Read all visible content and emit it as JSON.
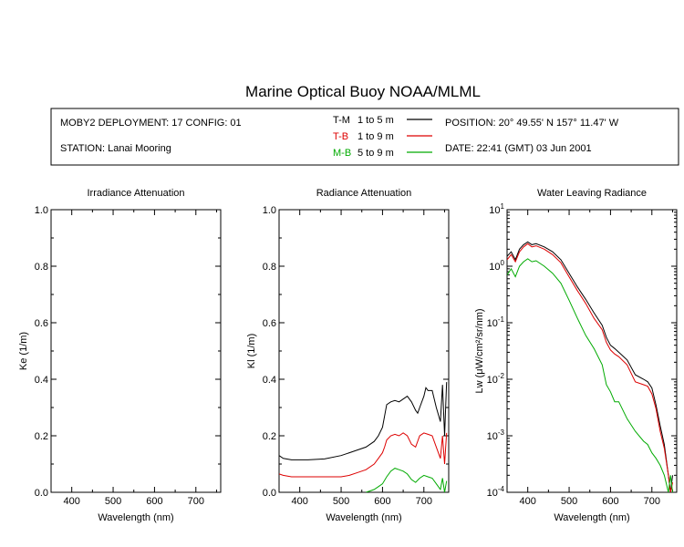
{
  "title": "Marine Optical Buoy NOAA/MLML",
  "info": {
    "deployment": "MOBY2 DEPLOYMENT: 17 CONFIG: 01",
    "station": "STATION: Lanai Mooring",
    "position": "POSITION: 20° 49.55' N   157° 11.47' W",
    "date": "DATE: 22:41 (GMT) 03 Jun 2001"
  },
  "legend": [
    {
      "code": "T-M",
      "range": "1 to 5  m",
      "color": "#000000"
    },
    {
      "code": "T-B",
      "range": "1 to 9  m",
      "color": "#dd0000"
    },
    {
      "code": "M-B",
      "range": "5 to 9  m",
      "color": "#00aa00"
    }
  ],
  "chart_data": [
    {
      "type": "line",
      "title": "Irradiance Attenuation",
      "xlabel": "Wavelength (nm)",
      "ylabel": "Ke  (1/m)",
      "xlim": [
        350,
        760
      ],
      "ylim": [
        0,
        1.0
      ],
      "xticks": [
        "400",
        "500",
        "600",
        "700"
      ],
      "yticks": [
        "0.0",
        "0.2",
        "0.4",
        "0.6",
        "0.8",
        "1.0"
      ],
      "series": []
    },
    {
      "type": "line",
      "title": "Radiance Attenuation",
      "xlabel": "Wavelength (nm)",
      "ylabel": "Kl  (1/m)",
      "xlim": [
        350,
        760
      ],
      "ylim": [
        0,
        1.0
      ],
      "xticks": [
        "400",
        "500",
        "600",
        "700"
      ],
      "yticks": [
        "0.0",
        "0.2",
        "0.4",
        "0.6",
        "0.8",
        "1.0"
      ],
      "series": [
        {
          "name": "T-M",
          "color": "#000000",
          "x": [
            350,
            360,
            380,
            420,
            460,
            500,
            520,
            540,
            560,
            580,
            590,
            600,
            605,
            610,
            620,
            630,
            640,
            650,
            660,
            670,
            680,
            685,
            690,
            700,
            705,
            710,
            720,
            730,
            740,
            745,
            750,
            755
          ],
          "y": [
            0.13,
            0.12,
            0.115,
            0.115,
            0.118,
            0.13,
            0.14,
            0.15,
            0.16,
            0.18,
            0.2,
            0.23,
            0.27,
            0.31,
            0.32,
            0.325,
            0.32,
            0.33,
            0.34,
            0.32,
            0.29,
            0.28,
            0.3,
            0.34,
            0.37,
            0.36,
            0.36,
            0.3,
            0.25,
            0.38,
            0.2,
            0.39
          ]
        },
        {
          "name": "T-B",
          "color": "#dd0000",
          "x": [
            350,
            360,
            380,
            420,
            460,
            500,
            520,
            540,
            560,
            580,
            590,
            600,
            605,
            610,
            620,
            630,
            640,
            650,
            660,
            670,
            680,
            690,
            700,
            710,
            720,
            730,
            740,
            745,
            750,
            755
          ],
          "y": [
            0.065,
            0.06,
            0.055,
            0.055,
            0.055,
            0.055,
            0.06,
            0.07,
            0.08,
            0.1,
            0.12,
            0.14,
            0.16,
            0.185,
            0.2,
            0.205,
            0.2,
            0.21,
            0.2,
            0.17,
            0.16,
            0.2,
            0.21,
            0.205,
            0.2,
            0.16,
            0.12,
            0.2,
            0.1,
            0.21
          ]
        },
        {
          "name": "M-B",
          "color": "#00aa00",
          "x": [
            560,
            570,
            580,
            590,
            600,
            610,
            620,
            630,
            640,
            650,
            660,
            670,
            680,
            690,
            700,
            710,
            720,
            730,
            740,
            745,
            750,
            755
          ],
          "y": [
            0.0,
            0.005,
            0.01,
            0.02,
            0.03,
            0.055,
            0.075,
            0.085,
            0.08,
            0.075,
            0.065,
            0.045,
            0.035,
            0.05,
            0.06,
            0.055,
            0.05,
            0.03,
            0.01,
            0.05,
            0.0,
            0.04
          ]
        }
      ]
    },
    {
      "type": "line",
      "title": "Water Leaving Radiance",
      "xlabel": "Wavelength (nm)",
      "ylabel": "Lw  (μW/cm²/sr/nm)",
      "log_y": true,
      "xlim": [
        350,
        760
      ],
      "ylim": [
        0.0001,
        10
      ],
      "xticks": [
        "400",
        "500",
        "600",
        "700"
      ],
      "series": [
        {
          "name": "T-M",
          "color": "#000000",
          "x": [
            350,
            360,
            370,
            380,
            390,
            400,
            410,
            420,
            440,
            460,
            480,
            500,
            520,
            540,
            560,
            580,
            590,
            600,
            610,
            620,
            640,
            660,
            680,
            690,
            700,
            710,
            720,
            730,
            740,
            745,
            750
          ],
          "y": [
            1.5,
            1.8,
            1.3,
            2.0,
            2.4,
            2.7,
            2.4,
            2.5,
            2.2,
            1.8,
            1.3,
            0.75,
            0.43,
            0.26,
            0.15,
            0.09,
            0.055,
            0.04,
            0.035,
            0.03,
            0.022,
            0.012,
            0.01,
            0.009,
            0.007,
            0.0035,
            0.0015,
            0.0007,
            0.0002,
            0.0001,
            0.0002
          ]
        },
        {
          "name": "T-B",
          "color": "#dd0000",
          "x": [
            350,
            360,
            370,
            380,
            390,
            400,
            410,
            420,
            440,
            460,
            480,
            500,
            520,
            540,
            560,
            580,
            590,
            600,
            610,
            620,
            640,
            660,
            680,
            690,
            700,
            710,
            720,
            730,
            740,
            745,
            750
          ],
          "y": [
            1.3,
            1.6,
            1.2,
            1.8,
            2.2,
            2.5,
            2.2,
            2.3,
            2.0,
            1.6,
            1.15,
            0.65,
            0.37,
            0.22,
            0.12,
            0.075,
            0.045,
            0.033,
            0.028,
            0.025,
            0.018,
            0.009,
            0.008,
            0.0075,
            0.0055,
            0.003,
            0.0012,
            0.0006,
            0.0002,
            0.0001,
            0.00015
          ]
        },
        {
          "name": "M-B",
          "color": "#00aa00",
          "x": [
            350,
            360,
            370,
            380,
            390,
            400,
            410,
            420,
            440,
            460,
            480,
            500,
            520,
            540,
            560,
            580,
            590,
            600,
            610,
            620,
            640,
            660,
            680,
            690,
            700,
            710,
            720,
            730,
            740,
            745,
            750
          ],
          "y": [
            0.7,
            0.9,
            0.65,
            1.0,
            1.2,
            1.35,
            1.2,
            1.25,
            1.0,
            0.75,
            0.5,
            0.25,
            0.12,
            0.06,
            0.035,
            0.018,
            0.008,
            0.006,
            0.004,
            0.004,
            0.002,
            0.0012,
            0.0008,
            0.0007,
            0.0005,
            0.0004,
            0.0003,
            0.0002,
            0.0001,
            0.0002,
            0.0001
          ]
        }
      ]
    }
  ]
}
